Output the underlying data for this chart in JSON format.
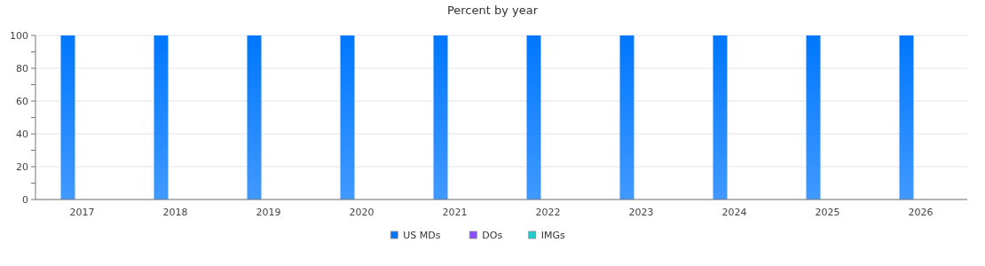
{
  "chart_data": {
    "type": "bar",
    "title": "Percent by year",
    "categories": [
      "2017",
      "2018",
      "2019",
      "2020",
      "2021",
      "2022",
      "2023",
      "2024",
      "2025",
      "2026"
    ],
    "series": [
      {
        "name": "US MDs",
        "color": "#0077ff",
        "values": [
          100,
          100,
          100,
          100,
          100,
          100,
          100,
          100,
          100,
          100
        ]
      },
      {
        "name": "DOs",
        "color": "#8a4fff",
        "values": [
          0,
          0,
          0,
          0,
          0,
          0,
          0,
          0,
          0,
          0
        ]
      },
      {
        "name": "IMGs",
        "color": "#22cccc",
        "values": [
          0,
          0,
          0,
          0,
          0,
          0,
          0,
          0,
          0,
          0
        ]
      }
    ],
    "ylim": [
      0,
      100
    ],
    "yticks": [
      0,
      {
        "value": 10,
        "label": null
      },
      20,
      {
        "value": 30,
        "label": null
      },
      40,
      {
        "value": 50,
        "label": null
      },
      60,
      {
        "value": 70,
        "label": null
      },
      80,
      {
        "value": 90,
        "label": null
      },
      100
    ],
    "grid": "y",
    "legend": "bottom"
  }
}
